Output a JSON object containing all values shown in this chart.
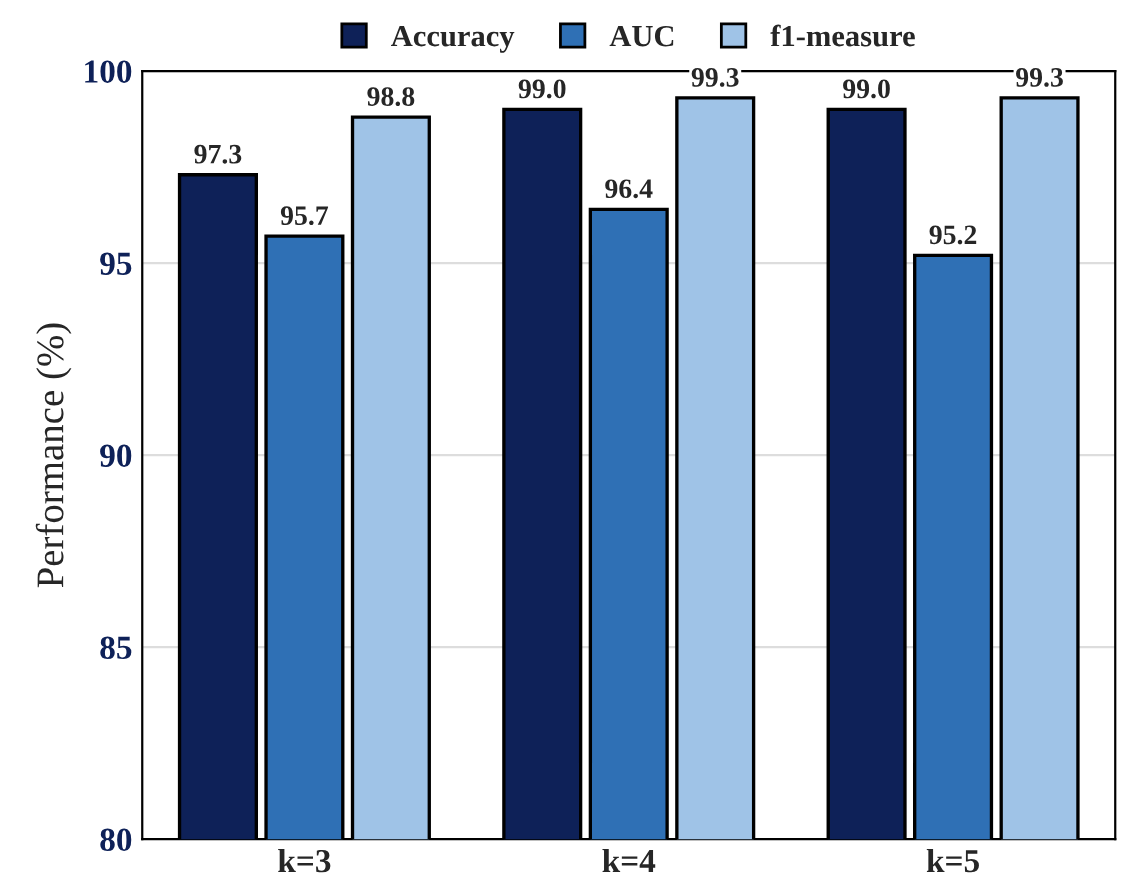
{
  "chart_data": {
    "type": "bar",
    "ylabel": "Performance (%)",
    "categories": [
      "k=3",
      "k=4",
      "k=5"
    ],
    "series": [
      {
        "name": "Accuracy",
        "color": "#0e2158",
        "values": [
          97.3,
          99.0,
          99.0
        ],
        "value_labels": [
          "97.3",
          "99.0",
          "99.0"
        ]
      },
      {
        "name": "AUC",
        "color": "#2f70b5",
        "values": [
          95.7,
          96.4,
          95.2
        ],
        "value_labels": [
          "95.7",
          "96.4",
          "95.2"
        ]
      },
      {
        "name": "f1-measure",
        "color": "#9fc3e7",
        "values": [
          98.8,
          99.3,
          99.3
        ],
        "value_labels": [
          "98.8",
          "99.3",
          "99.3"
        ]
      }
    ],
    "ylim": [
      80,
      100
    ],
    "yticks": [
      80,
      85,
      90,
      95,
      100
    ],
    "grid": "y",
    "legend": "top"
  }
}
